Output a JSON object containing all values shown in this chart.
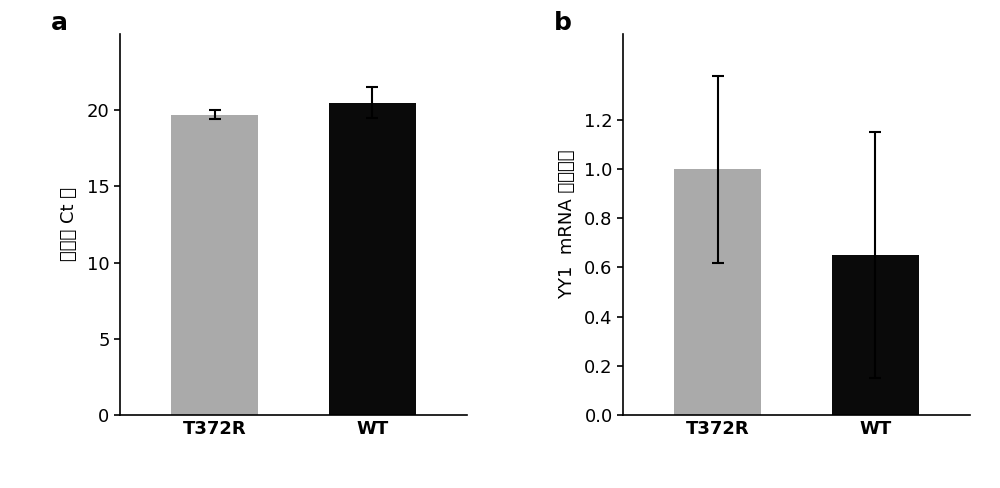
{
  "panel_a": {
    "categories": [
      "T372R",
      "WT"
    ],
    "values": [
      19.7,
      20.5
    ],
    "errors": [
      0.3,
      1.0
    ],
    "bar_colors": [
      "#aaaaaa",
      "#0a0a0a"
    ],
    "ylabel": "归一化 Ct 値",
    "ylim": [
      0,
      25
    ],
    "yticks": [
      0,
      5,
      10,
      15,
      20
    ],
    "panel_label": "a"
  },
  "panel_b": {
    "categories": [
      "T372R",
      "WT"
    ],
    "values": [
      1.0,
      0.65
    ],
    "errors": [
      0.38,
      0.5
    ],
    "bar_colors": [
      "#aaaaaa",
      "#0a0a0a"
    ],
    "ylabel": "YY1  mRNA 相对水平",
    "ylim": [
      0,
      1.55
    ],
    "yticks": [
      0,
      0.2,
      0.4,
      0.6,
      0.8,
      1.0,
      1.2
    ],
    "panel_label": "b"
  },
  "background_color": "#ffffff",
  "bar_width": 0.55,
  "capsize": 4,
  "tick_fontsize": 13,
  "label_fontsize": 13,
  "panel_label_fontsize": 18
}
